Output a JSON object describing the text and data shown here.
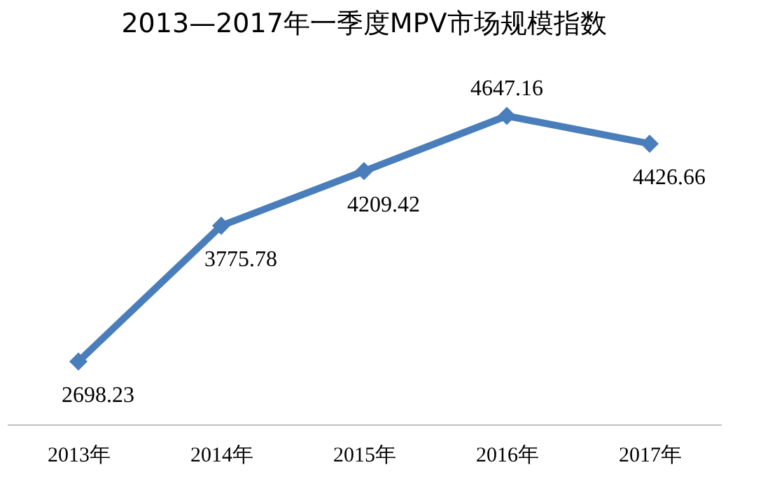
{
  "chart_data": {
    "type": "line",
    "title": "2013—2017年一季度MPV市场规模指数",
    "categories": [
      "2013年",
      "2014年",
      "2015年",
      "2016年",
      "2017年"
    ],
    "series": [
      {
        "color": "#4a7ebb",
        "values": [
          2698.23,
          3775.78,
          4209.42,
          4647.16,
          4426.66
        ]
      }
    ],
    "marker": "diamond",
    "data_labels": true,
    "tick_labels": "x"
  }
}
